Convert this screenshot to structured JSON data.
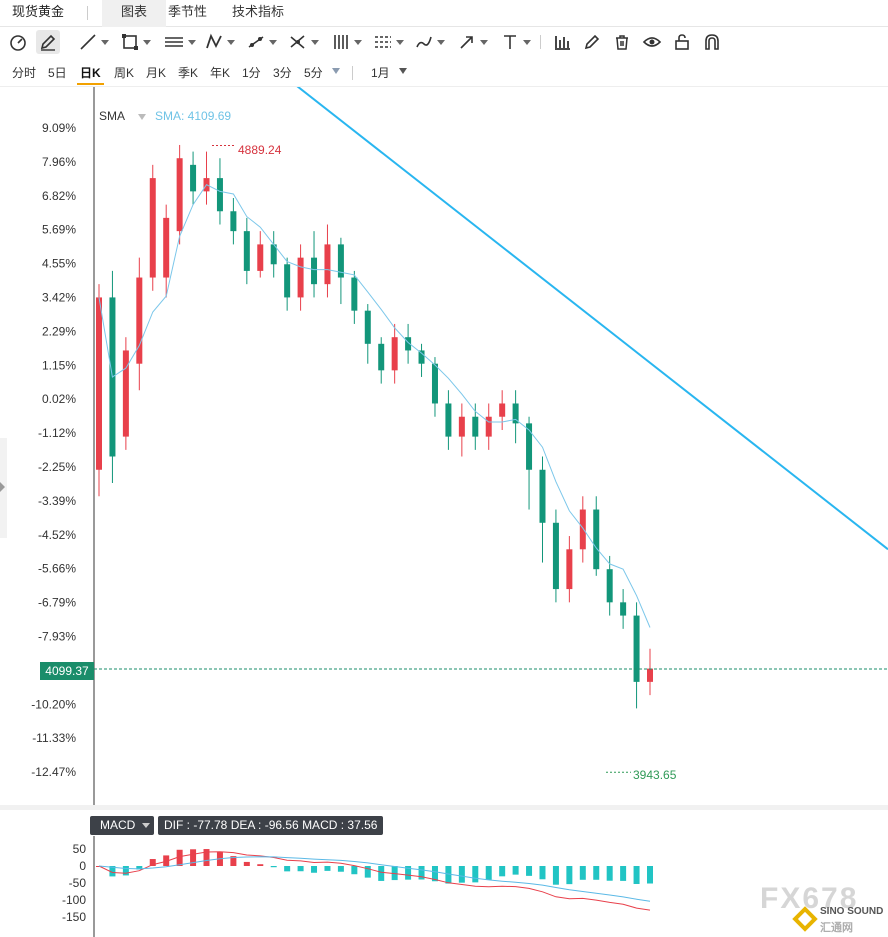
{
  "header": {
    "title": "现货黄金",
    "tabs": [
      "图表",
      "季节性",
      "技术指标"
    ],
    "active_tab": "图表"
  },
  "toolbar": {
    "icons": [
      "gauge-icon",
      "pencil-icon",
      "line-tool-icon",
      "rect-tool-icon",
      "parallel-lines-icon",
      "pattern-icon",
      "ray-icon",
      "fork-icon",
      "fibonacci-icon",
      "gann-icon",
      "brush-icon",
      "arrow-icon",
      "text-icon",
      "bars-icon",
      "edit-icon",
      "trash-icon",
      "eye-icon",
      "lock-icon",
      "magnet-icon"
    ]
  },
  "periods": {
    "items": [
      "分时",
      "5日",
      "日K",
      "周K",
      "月K",
      "季K",
      "年K",
      "1分",
      "3分",
      "5分",
      "1月"
    ],
    "active": "日K"
  },
  "colors": {
    "up": "#e8404b",
    "down": "#12967a",
    "trendline": "#29b6f0",
    "sma": "#7cc7ea",
    "price_tag": "#1a8d6a",
    "dif": "#e8404b",
    "dea": "#5bb9e6"
  },
  "indicator": {
    "sma_label": "SMA",
    "sma_value": "SMA: 4109.69"
  },
  "markers": {
    "high": "4889.24",
    "low": "3943.65",
    "current_price": "4099.37"
  },
  "macd": {
    "label": "MACD",
    "info": "DIF : -77.78  DEA : -96.56  MACD : 37.56",
    "y_ticks": [
      "50",
      "0",
      "-50",
      "-100",
      "-150"
    ]
  },
  "watermark": {
    "text": "FX678",
    "brand": "SINO SOUND",
    "brand_cn": "汇通网"
  },
  "chart_data": {
    "type": "candlestick",
    "y_ticks": [
      "9.09%",
      "7.96%",
      "6.82%",
      "5.69%",
      "4.55%",
      "3.42%",
      "2.29%",
      "1.15%",
      "0.02%",
      "-1.12%",
      "-2.25%",
      "-3.39%",
      "-4.52%",
      "-5.66%",
      "-6.79%",
      "-7.93%",
      "-9.06%",
      "-10.20%",
      "-11.33%",
      "-12.47%"
    ],
    "ylim_pct": [
      -13.0,
      10.0
    ],
    "base_price": 4506.0,
    "candles": [
      {
        "o": 4400,
        "c": 4660,
        "h": 4680,
        "l": 4360
      },
      {
        "o": 4660,
        "c": 4420,
        "h": 4700,
        "l": 4380
      },
      {
        "o": 4450,
        "c": 4580,
        "h": 4600,
        "l": 4430
      },
      {
        "o": 4560,
        "c": 4690,
        "h": 4720,
        "l": 4520
      },
      {
        "o": 4690,
        "c": 4840,
        "h": 4860,
        "l": 4670
      },
      {
        "o": 4690,
        "c": 4780,
        "h": 4800,
        "l": 4660
      },
      {
        "o": 4760,
        "c": 4870,
        "h": 4890,
        "l": 4740
      },
      {
        "o": 4860,
        "c": 4820,
        "h": 4880,
        "l": 4800
      },
      {
        "o": 4820,
        "c": 4840,
        "h": 4880,
        "l": 4800
      },
      {
        "o": 4840,
        "c": 4790,
        "h": 4870,
        "l": 4770
      },
      {
        "o": 4790,
        "c": 4760,
        "h": 4810,
        "l": 4740
      },
      {
        "o": 4760,
        "c": 4700,
        "h": 4780,
        "l": 4680
      },
      {
        "o": 4700,
        "c": 4740,
        "h": 4760,
        "l": 4690
      },
      {
        "o": 4740,
        "c": 4710,
        "h": 4760,
        "l": 4690
      },
      {
        "o": 4710,
        "c": 4660,
        "h": 4720,
        "l": 4640
      },
      {
        "o": 4660,
        "c": 4720,
        "h": 4740,
        "l": 4640
      },
      {
        "o": 4720,
        "c": 4680,
        "h": 4760,
        "l": 4660
      },
      {
        "o": 4680,
        "c": 4740,
        "h": 4770,
        "l": 4660
      },
      {
        "o": 4740,
        "c": 4690,
        "h": 4750,
        "l": 4650
      },
      {
        "o": 4690,
        "c": 4640,
        "h": 4700,
        "l": 4620
      },
      {
        "o": 4640,
        "c": 4590,
        "h": 4650,
        "l": 4560
      },
      {
        "o": 4590,
        "c": 4550,
        "h": 4600,
        "l": 4530
      },
      {
        "o": 4550,
        "c": 4600,
        "h": 4620,
        "l": 4530
      },
      {
        "o": 4600,
        "c": 4580,
        "h": 4620,
        "l": 4560
      },
      {
        "o": 4580,
        "c": 4560,
        "h": 4590,
        "l": 4540
      },
      {
        "o": 4560,
        "c": 4500,
        "h": 4570,
        "l": 4480
      },
      {
        "o": 4500,
        "c": 4450,
        "h": 4520,
        "l": 4430
      },
      {
        "o": 4450,
        "c": 4480,
        "h": 4500,
        "l": 4420
      },
      {
        "o": 4480,
        "c": 4450,
        "h": 4500,
        "l": 4430
      },
      {
        "o": 4450,
        "c": 4480,
        "h": 4500,
        "l": 4430
      },
      {
        "o": 4480,
        "c": 4500,
        "h": 4520,
        "l": 4460
      },
      {
        "o": 4500,
        "c": 4470,
        "h": 4520,
        "l": 4440
      },
      {
        "o": 4470,
        "c": 4400,
        "h": 4480,
        "l": 4340
      },
      {
        "o": 4400,
        "c": 4320,
        "h": 4420,
        "l": 4260
      },
      {
        "o": 4320,
        "c": 4220,
        "h": 4340,
        "l": 4200
      },
      {
        "o": 4220,
        "c": 4280,
        "h": 4300,
        "l": 4200
      },
      {
        "o": 4280,
        "c": 4340,
        "h": 4360,
        "l": 4260
      },
      {
        "o": 4340,
        "c": 4250,
        "h": 4360,
        "l": 4240
      },
      {
        "o": 4250,
        "c": 4200,
        "h": 4270,
        "l": 4180
      },
      {
        "o": 4200,
        "c": 4180,
        "h": 4220,
        "l": 4160
      },
      {
        "o": 4180,
        "c": 4080,
        "h": 4200,
        "l": 4040
      },
      {
        "o": 4080,
        "c": 4100,
        "h": 4130,
        "l": 4060
      }
    ],
    "sma_line": {
      "name": "SMA"
    },
    "annotations": {
      "high": 4889.24,
      "low": 3943.65,
      "current": 4099.37
    }
  }
}
